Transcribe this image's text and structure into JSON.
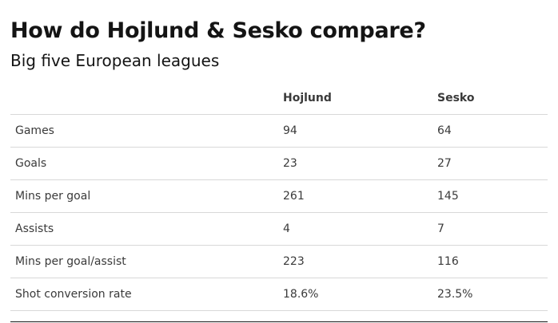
{
  "chart_data": {
    "type": "table",
    "title": "How do Hojlund & Sesko compare?",
    "subtitle": "Big five European leagues",
    "columns": [
      "",
      "Hojlund",
      "Sesko"
    ],
    "rows": [
      {
        "metric": "Games",
        "values": [
          "94",
          "64"
        ]
      },
      {
        "metric": "Goals",
        "values": [
          "23",
          "27"
        ]
      },
      {
        "metric": "Mins per goal",
        "values": [
          "261",
          "145"
        ]
      },
      {
        "metric": "Assists",
        "values": [
          "4",
          "7"
        ]
      },
      {
        "metric": "Mins per goal/assist",
        "values": [
          "223",
          "116"
        ]
      },
      {
        "metric": "Shot conversion rate",
        "values": [
          "18.6%",
          "23.5%"
        ]
      }
    ]
  }
}
